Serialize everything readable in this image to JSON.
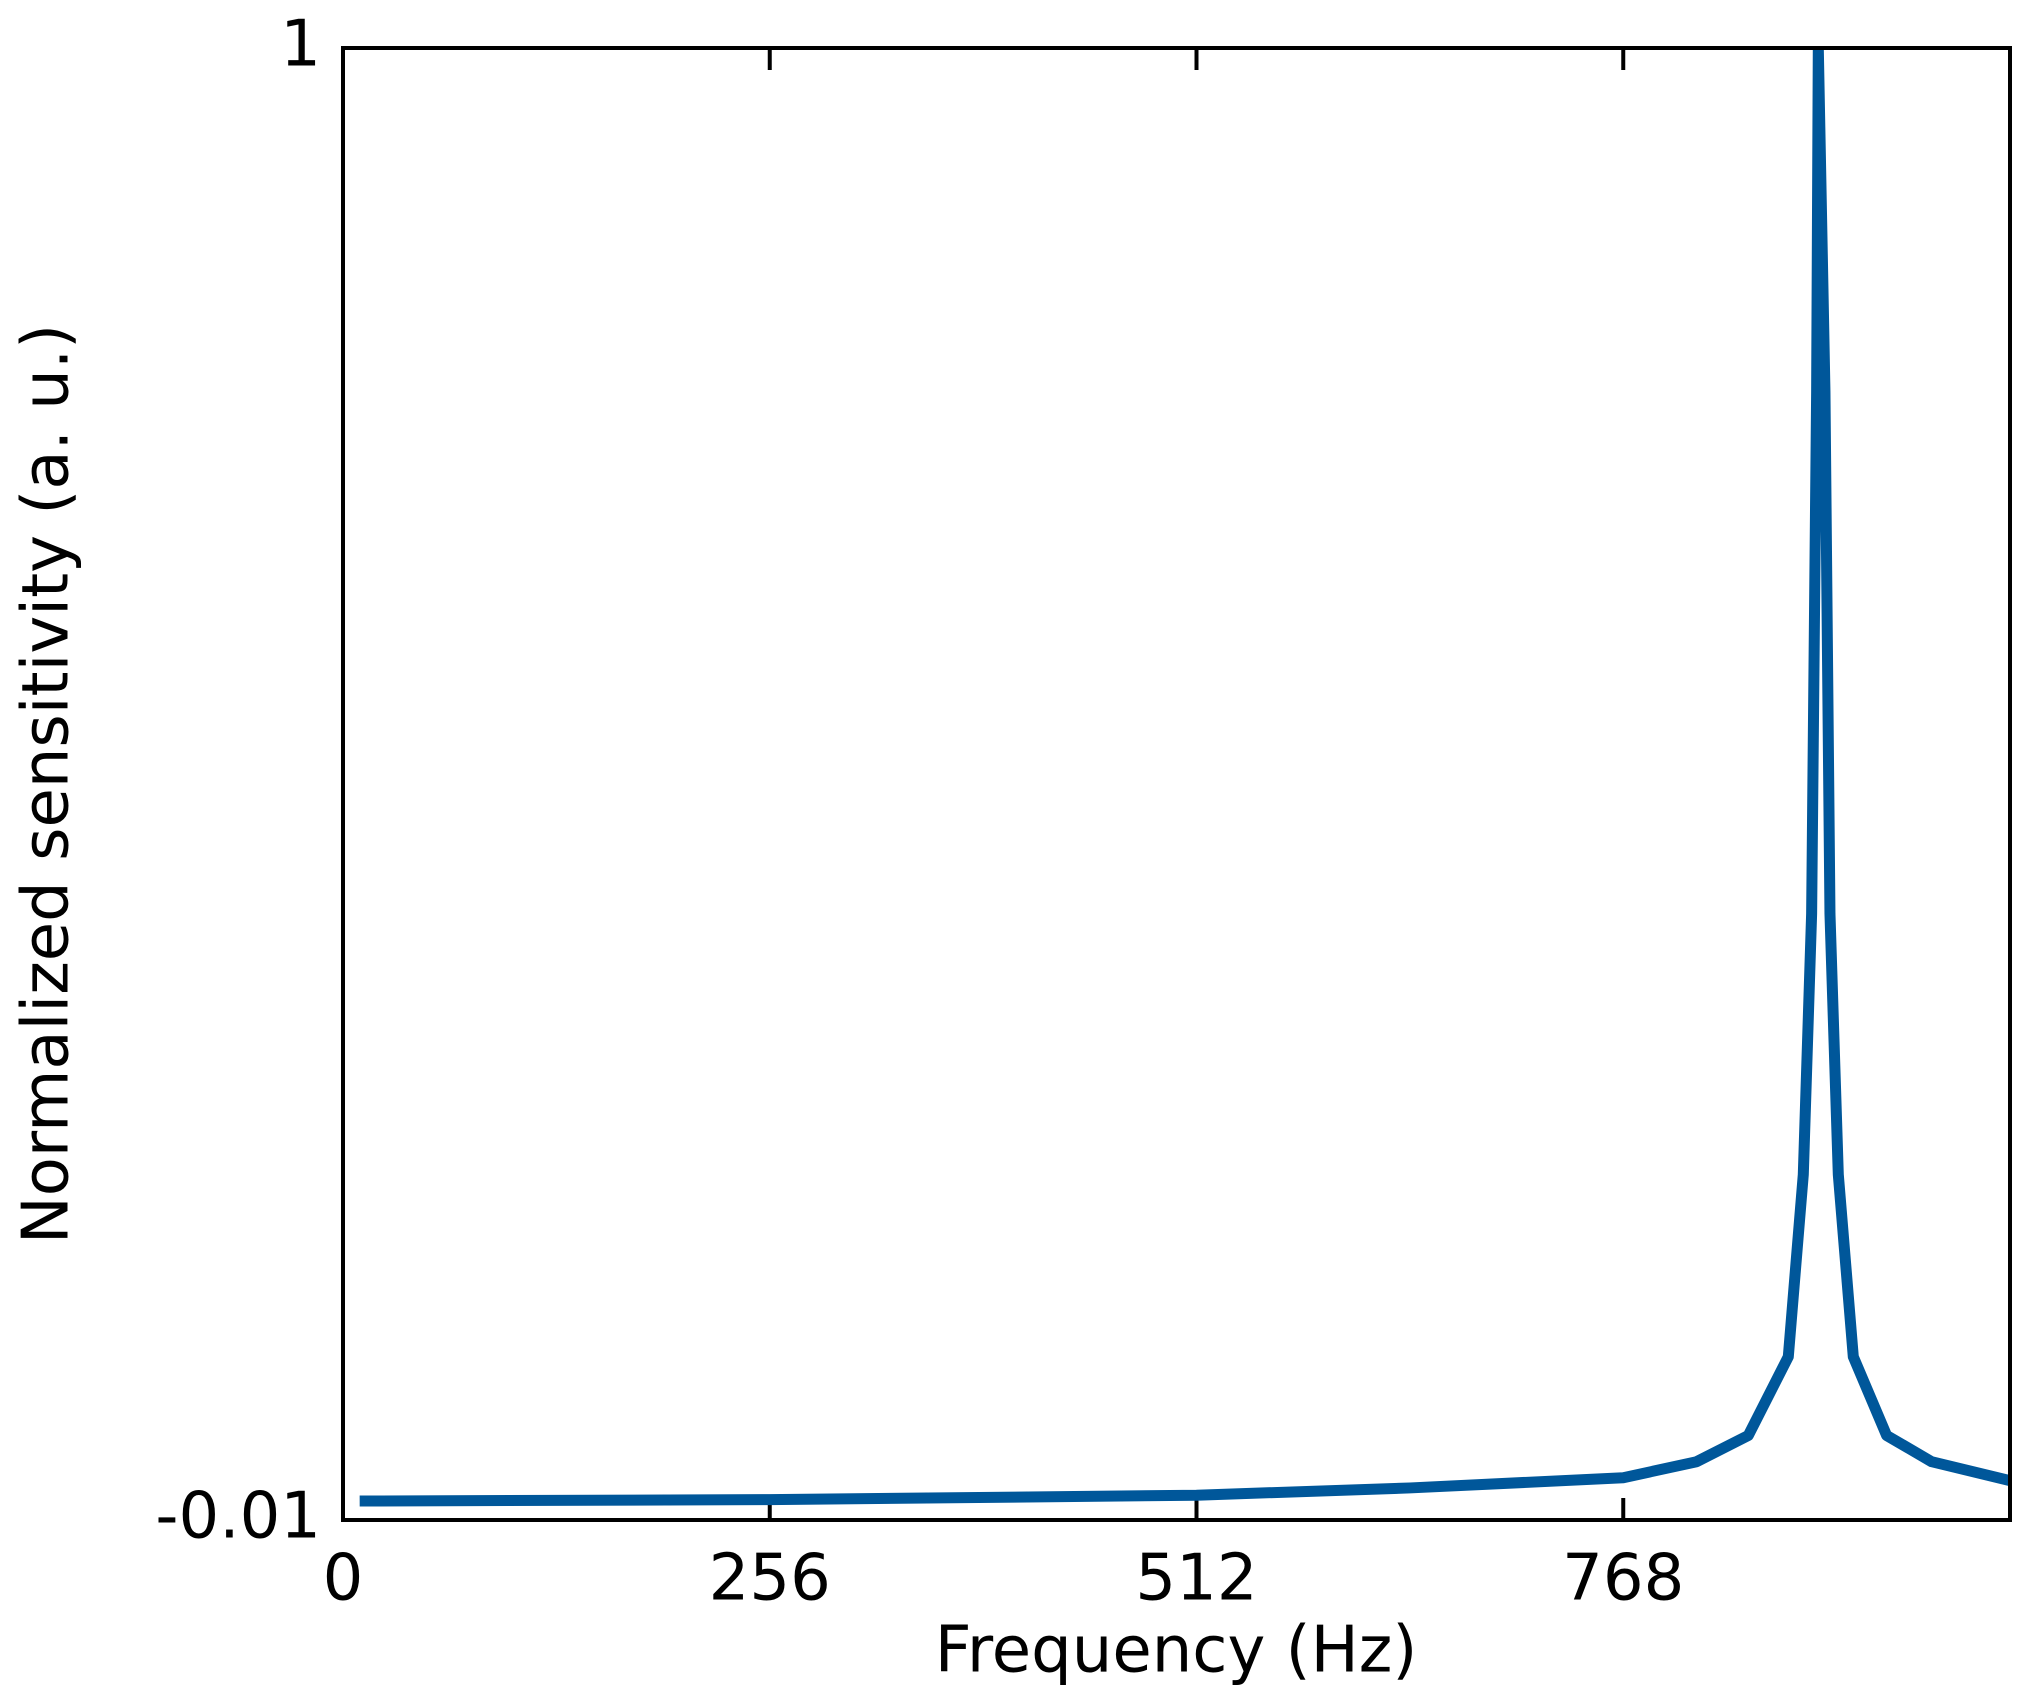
{
  "chart_data": {
    "type": "line",
    "x_label": "Frequency (Hz)",
    "y_label": "Normalized sensitivity (a. u.)",
    "x": [
      10,
      256,
      512,
      640,
      768,
      812,
      843,
      867,
      876,
      881,
      884,
      885,
      889,
      892,
      897,
      906,
      926,
      953,
      1000
    ],
    "series": [
      {
        "name": "Normalized sensitivity",
        "color": "#00579a",
        "values": [
          0.003,
          0.004,
          0.007,
          0.012,
          0.019,
          0.03,
          0.048,
          0.102,
          0.227,
          0.406,
          0.764,
          1.0,
          0.764,
          0.406,
          0.227,
          0.102,
          0.048,
          0.03,
          0.017
        ]
      }
    ],
    "xlim": [
      0,
      1000
    ],
    "ylim": [
      -0.01,
      1
    ],
    "xticks": [
      0,
      256,
      512,
      768
    ],
    "yticks": [
      -0.01,
      1
    ],
    "grid": false
  }
}
